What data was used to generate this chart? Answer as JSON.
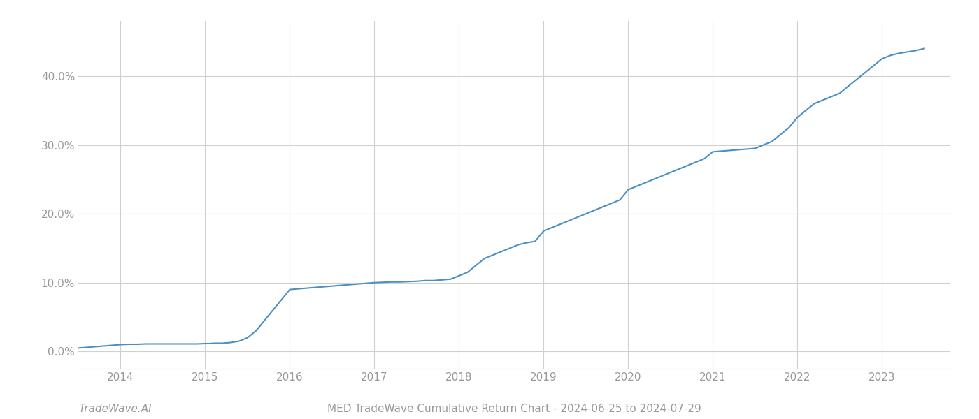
{
  "title": "MED TradeWave Cumulative Return Chart - 2024-06-25 to 2024-07-29",
  "watermark": "TradeWave.AI",
  "line_color": "#4a90c4",
  "background_color": "#ffffff",
  "grid_color": "#d0d0d0",
  "x_values": [
    2013.5,
    2014.0,
    2014.1,
    2014.2,
    2014.3,
    2014.4,
    2014.5,
    2014.6,
    2014.7,
    2014.8,
    2014.9,
    2015.0,
    2015.05,
    2015.1,
    2015.15,
    2015.2,
    2015.25,
    2015.3,
    2015.4,
    2015.5,
    2015.6,
    2015.7,
    2015.8,
    2015.9,
    2016.0,
    2016.1,
    2016.2,
    2016.3,
    2016.4,
    2016.5,
    2016.6,
    2016.7,
    2016.8,
    2016.9,
    2017.0,
    2017.1,
    2017.2,
    2017.3,
    2017.4,
    2017.5,
    2017.6,
    2017.7,
    2017.8,
    2017.9,
    2018.0,
    2018.1,
    2018.2,
    2018.3,
    2018.4,
    2018.5,
    2018.6,
    2018.7,
    2018.8,
    2018.9,
    2019.0,
    2019.1,
    2019.2,
    2019.3,
    2019.4,
    2019.5,
    2019.6,
    2019.7,
    2019.8,
    2019.9,
    2020.0,
    2020.1,
    2020.2,
    2020.3,
    2020.4,
    2020.5,
    2020.6,
    2020.7,
    2020.8,
    2020.9,
    2021.0,
    2021.1,
    2021.2,
    2021.3,
    2021.4,
    2021.5,
    2021.6,
    2021.7,
    2021.8,
    2021.9,
    2022.0,
    2022.1,
    2022.2,
    2022.3,
    2022.4,
    2022.5,
    2022.6,
    2022.7,
    2022.8,
    2022.9,
    2023.0,
    2023.1,
    2023.2,
    2023.3,
    2023.4,
    2023.5
  ],
  "y_values": [
    0.5,
    1.0,
    1.05,
    1.05,
    1.1,
    1.1,
    1.1,
    1.1,
    1.1,
    1.1,
    1.1,
    1.15,
    1.15,
    1.2,
    1.2,
    1.2,
    1.25,
    1.3,
    1.5,
    2.0,
    3.0,
    4.5,
    6.0,
    7.5,
    9.0,
    9.1,
    9.2,
    9.3,
    9.4,
    9.5,
    9.6,
    9.7,
    9.8,
    9.9,
    10.0,
    10.05,
    10.1,
    10.1,
    10.15,
    10.2,
    10.3,
    10.3,
    10.4,
    10.5,
    11.0,
    11.5,
    12.5,
    13.5,
    14.0,
    14.5,
    15.0,
    15.5,
    15.8,
    16.0,
    17.5,
    18.0,
    18.5,
    19.0,
    19.5,
    20.0,
    20.5,
    21.0,
    21.5,
    22.0,
    23.5,
    24.0,
    24.5,
    25.0,
    25.5,
    26.0,
    26.5,
    27.0,
    27.5,
    28.0,
    29.0,
    29.1,
    29.2,
    29.3,
    29.4,
    29.5,
    30.0,
    30.5,
    31.5,
    32.5,
    34.0,
    35.0,
    36.0,
    36.5,
    37.0,
    37.5,
    38.5,
    39.5,
    40.5,
    41.5,
    42.5,
    43.0,
    43.3,
    43.5,
    43.7,
    44.0
  ],
  "xlim": [
    2013.5,
    2023.8
  ],
  "ylim": [
    -2.5,
    48.0
  ],
  "yticks": [
    0.0,
    10.0,
    20.0,
    30.0,
    40.0
  ],
  "xticks": [
    2014,
    2015,
    2016,
    2017,
    2018,
    2019,
    2020,
    2021,
    2022,
    2023
  ],
  "line_width": 1.5,
  "title_fontsize": 11,
  "watermark_fontsize": 11,
  "tick_fontsize": 11,
  "tick_color": "#999999",
  "spine_color": "#cccccc"
}
